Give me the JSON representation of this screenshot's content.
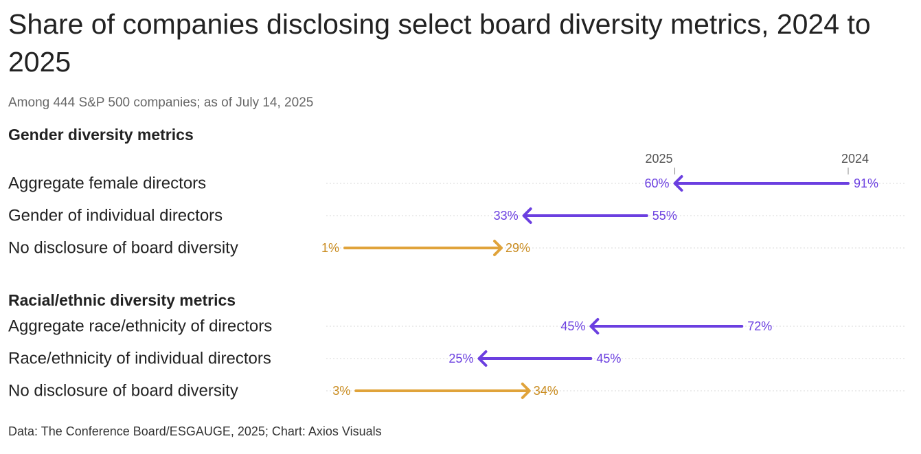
{
  "title": "Share of companies disclosing select board diversity metrics, 2024 to 2025",
  "subtitle": "Among 444 S&P 500 companies; as of July 14, 2025",
  "source": "Data: The Conference Board/ESGAUGE, 2025; Chart: Axios Visuals",
  "colors": {
    "decrease": "#6B3FE0",
    "increase": "#E0A33A",
    "increase_text": "#C98B1E",
    "gridline": "#d9d9d9"
  },
  "chart_data": {
    "type": "arrow",
    "title": "Share of companies disclosing select board diversity metrics, 2024 to 2025",
    "subtitle": "Among 444 S&P 500 companies; as of July 14, 2025",
    "year_from": "2024",
    "year_to": "2025",
    "unit": "%",
    "xlim": [
      0,
      91
    ],
    "groups": [
      {
        "name": "Gender diversity metrics",
        "rows": [
          {
            "label": "Aggregate female directors",
            "v2024": 91,
            "v2025": 60,
            "label2024": "91%",
            "label2025": "60%"
          },
          {
            "label": "Gender of individual directors",
            "v2024": 55,
            "v2025": 33,
            "label2024": "55%",
            "label2025": "33%"
          },
          {
            "label": "No disclosure of board diversity",
            "v2024": 1,
            "v2025": 29,
            "label2024": "1%",
            "label2025": "29%"
          }
        ]
      },
      {
        "name": "Racial/ethnic diversity metrics",
        "rows": [
          {
            "label": "Aggregate race/ethnicity of directors",
            "v2024": 72,
            "v2025": 45,
            "label2024": "72%",
            "label2025": "45%"
          },
          {
            "label": "Race/ethnicity of individual directors",
            "v2024": 45,
            "v2025": 25,
            "label2024": "45%",
            "label2025": "25%"
          },
          {
            "label": "No disclosure of board diversity",
            "v2024": 3,
            "v2025": 34,
            "label2024": "3%",
            "label2025": "34%"
          }
        ]
      }
    ]
  }
}
